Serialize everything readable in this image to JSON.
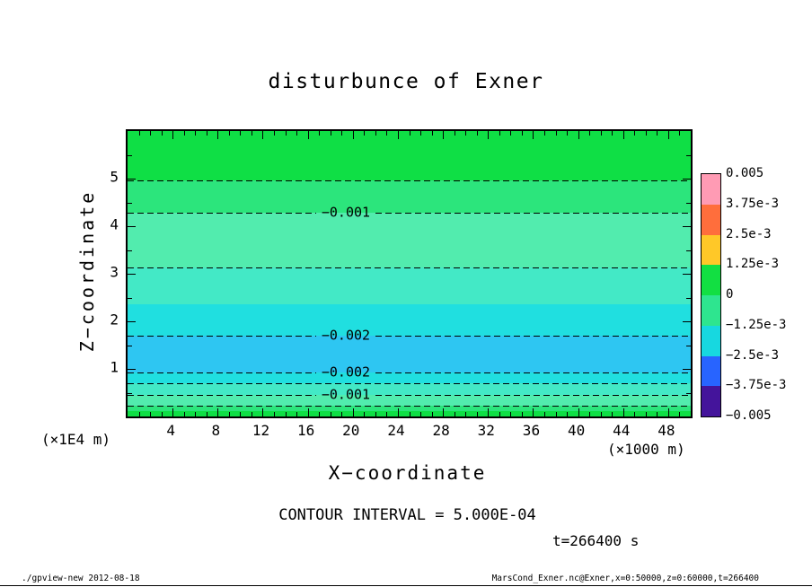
{
  "page": {
    "footer_left": "./gpview-new  2012-08-18",
    "footer_right": "MarsCond_Exner.nc@Exner,x=0:50000,z=0:60000,t=266400"
  },
  "chart_data": {
    "type": "heatmap",
    "title": "disturbunce of Exner",
    "xlabel": "X−coordinate",
    "ylabel": "Z−coordinate",
    "x_unit": "(×1000 m)",
    "y_unit": "(×1E4 m)",
    "contour_note": "CONTOUR INTERVAL = 5.000E-04",
    "time_note": "t=266400 s",
    "xlim": [
      0,
      50
    ],
    "ylim": [
      0,
      6
    ],
    "x_major_ticks": [
      4,
      8,
      12,
      16,
      20,
      24,
      28,
      32,
      36,
      40,
      44,
      48
    ],
    "x_minor_step": 1,
    "y_major_ticks": [
      1,
      2,
      3,
      4,
      5
    ],
    "y_minor_step": 0.5,
    "grid": false,
    "contour_interval": 0.0005,
    "profile_z_vs_value": [
      {
        "z": 6.0,
        "value": -0.0003
      },
      {
        "z": 5.0,
        "value": -0.0005
      },
      {
        "z": 4.3,
        "value": -0.001
      },
      {
        "z": 3.15,
        "value": -0.0015
      },
      {
        "z": 1.7,
        "value": -0.002
      },
      {
        "z": 1.3,
        "value": -0.0022
      },
      {
        "z": 0.93,
        "value": -0.002
      },
      {
        "z": 0.7,
        "value": -0.0015
      },
      {
        "z": 0.45,
        "value": -0.001
      },
      {
        "z": 0.23,
        "value": -0.0005
      },
      {
        "z": 0.0,
        "value": -0.0002
      }
    ],
    "bands": [
      {
        "z_top": 6.0,
        "z_bottom": 4.96,
        "color": "#0fdf45"
      },
      {
        "z_top": 4.96,
        "z_bottom": 4.28,
        "color": "#2ce57c"
      },
      {
        "z_top": 4.28,
        "z_bottom": 3.13,
        "color": "#52ecae"
      },
      {
        "z_top": 3.13,
        "z_bottom": 2.36,
        "color": "#43e9c6"
      },
      {
        "z_top": 2.36,
        "z_bottom": 1.7,
        "color": "#20dfe0"
      },
      {
        "z_top": 1.7,
        "z_bottom": 0.92,
        "color": "#2ec6f2"
      },
      {
        "z_top": 0.92,
        "z_bottom": 0.7,
        "color": "#20dfe0"
      },
      {
        "z_top": 0.7,
        "z_bottom": 0.45,
        "color": "#43e9c6"
      },
      {
        "z_top": 0.45,
        "z_bottom": 0.23,
        "color": "#52ecae"
      },
      {
        "z_top": 0.23,
        "z_bottom": 0.11,
        "color": "#2ce57c"
      },
      {
        "z_top": 0.11,
        "z_bottom": 0.0,
        "color": "#0fdf45"
      }
    ],
    "contours": [
      {
        "z": 4.96,
        "value": -0.0005,
        "label": null
      },
      {
        "z": 4.28,
        "value": -0.001,
        "label": "−0.001"
      },
      {
        "z": 3.13,
        "value": -0.0015,
        "label": null
      },
      {
        "z": 1.7,
        "value": -0.002,
        "label": "−0.002"
      },
      {
        "z": 0.92,
        "value": -0.002,
        "label": "−0.002"
      },
      {
        "z": 0.7,
        "value": -0.0015,
        "label": null
      },
      {
        "z": 0.45,
        "value": -0.001,
        "label": "−0.001"
      },
      {
        "z": 0.23,
        "value": -0.0005,
        "label": null
      }
    ],
    "colorbar": {
      "labels": [
        "0.005",
        "3.75e-3",
        "2.5e-3",
        "1.25e-3",
        "0",
        "−1.25e-3",
        "−2.5e-3",
        "−3.75e-3",
        "−0.005"
      ],
      "colors": [
        "#ff9bb4",
        "#ff6e3c",
        "#ffc828",
        "#12df42",
        "#2ee58f",
        "#17d8e0",
        "#2864ff",
        "#44149b"
      ]
    }
  }
}
